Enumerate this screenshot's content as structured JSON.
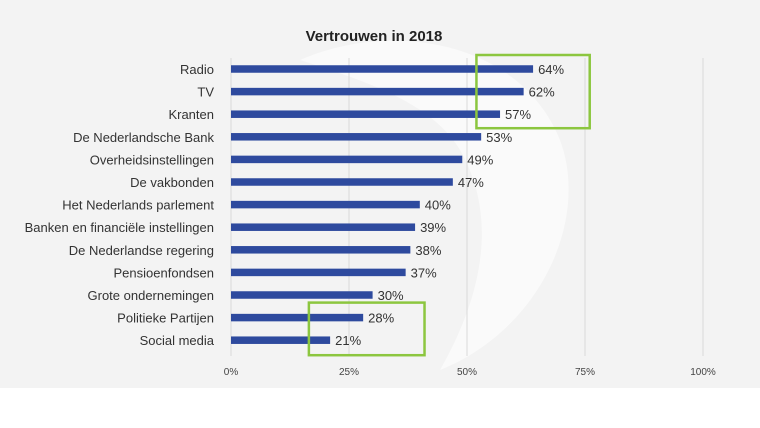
{
  "chart_data": {
    "type": "bar",
    "orientation": "horizontal",
    "title": "Vertrouwen in 2018",
    "categories": [
      "Radio",
      "TV",
      "Kranten",
      "De Nederlandsche Bank",
      "Overheidsinstellingen",
      "De vakbonden",
      "Het Nederlands parlement",
      "Banken en financiële instellingen",
      "De Nederlandse regering",
      "Pensioenfondsen",
      "Grote ondernemingen",
      "Politieke Partijen",
      "Social media"
    ],
    "values": [
      64,
      62,
      57,
      53,
      49,
      47,
      40,
      39,
      38,
      37,
      30,
      28,
      21
    ],
    "value_labels": [
      "64%",
      "62%",
      "57%",
      "53%",
      "49%",
      "47%",
      "40%",
      "39%",
      "38%",
      "37%",
      "30%",
      "28%",
      "21%"
    ],
    "xlim": [
      0,
      100
    ],
    "ticks": [
      0,
      25,
      50,
      75,
      100
    ],
    "tick_labels": [
      "0%",
      "25%",
      "50%",
      "75%",
      "100%"
    ],
    "grid": true,
    "highlight_groups": [
      {
        "name": "top-media",
        "categories": [
          "Radio",
          "TV",
          "Kranten"
        ]
      },
      {
        "name": "lowest-trust",
        "categories": [
          "Politieke Partijen",
          "Social media"
        ]
      }
    ]
  },
  "colors": {
    "bar": "#2e4a9e",
    "highlight_box": "#8cc63f",
    "grid": "#d9d9d9",
    "background": "#f3f3f3"
  }
}
